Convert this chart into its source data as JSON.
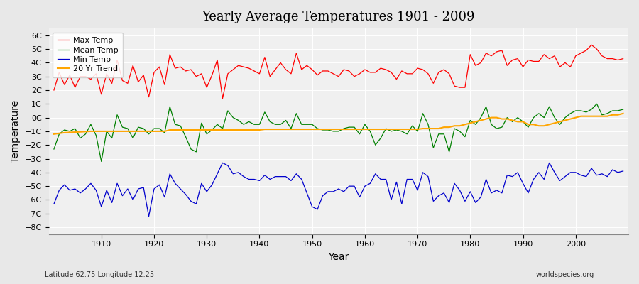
{
  "title": "Yearly Average Temperatures 1901 - 2009",
  "xlabel": "Year",
  "ylabel": "Temperature",
  "subtitle_left": "Latitude 62.75 Longitude 12.25",
  "subtitle_right": "worldspecies.org",
  "ylim": [
    -8.5,
    6.5
  ],
  "yticks": [
    -8,
    -7,
    -6,
    -5,
    -4,
    -3,
    -2,
    -1,
    0,
    1,
    2,
    3,
    4,
    5,
    6
  ],
  "ytick_labels": [
    "−8C",
    "−7C",
    "−6C",
    "−5C",
    "−4C",
    "−3C",
    "−2C",
    "−1C",
    "0C",
    "1C",
    "2C",
    "3C",
    "4C",
    "5C",
    "6C"
  ],
  "xticks": [
    1910,
    1920,
    1930,
    1940,
    1950,
    1960,
    1970,
    1980,
    1990,
    2000
  ],
  "max_color": "#ff0000",
  "mean_color": "#008000",
  "min_color": "#0000cc",
  "trend_color": "#ffa500",
  "bg_color": "#e8e8e8",
  "plot_bg": "#f0f0f0",
  "grid_color": "#ffffff",
  "legend_labels": [
    "Max Temp",
    "Mean Temp",
    "Min Temp",
    "20 Yr Trend"
  ],
  "start_year": 1901,
  "end_year": 2009,
  "max_temps": [
    2.0,
    3.3,
    2.4,
    3.1,
    2.2,
    3.0,
    3.0,
    2.8,
    3.2,
    1.7,
    3.2,
    2.5,
    4.2,
    2.7,
    2.5,
    3.8,
    2.6,
    3.1,
    1.5,
    3.3,
    3.7,
    2.4,
    4.6,
    3.6,
    3.7,
    3.4,
    3.5,
    3.0,
    3.2,
    2.2,
    3.1,
    4.2,
    1.4,
    3.2,
    3.5,
    3.8,
    3.7,
    3.6,
    3.4,
    3.2,
    4.4,
    3.0,
    3.5,
    4.0,
    3.5,
    3.2,
    4.7,
    3.5,
    3.8,
    3.5,
    3.1,
    3.4,
    3.4,
    3.2,
    3.0,
    3.5,
    3.4,
    3.0,
    3.2,
    3.5,
    3.3,
    3.3,
    3.6,
    3.5,
    3.3,
    2.8,
    3.4,
    3.2,
    3.2,
    3.6,
    3.5,
    3.2,
    2.5,
    3.3,
    3.5,
    3.2,
    2.3,
    2.2,
    2.2,
    4.6,
    3.8,
    4.0,
    4.7,
    4.5,
    4.8,
    4.9,
    3.8,
    4.2,
    4.3,
    3.7,
    4.2,
    4.1,
    4.1,
    4.6,
    4.3,
    4.5,
    3.7,
    4.0,
    3.7,
    4.5,
    4.7,
    4.9,
    5.3,
    5.0,
    4.5,
    4.3,
    4.3,
    4.2,
    4.3
  ],
  "mean_temps": [
    -2.3,
    -1.2,
    -0.9,
    -1.0,
    -0.8,
    -1.5,
    -1.2,
    -0.5,
    -1.3,
    -3.2,
    -1.0,
    -1.5,
    0.2,
    -0.7,
    -0.8,
    -1.5,
    -0.7,
    -0.8,
    -1.2,
    -0.8,
    -0.8,
    -1.1,
    0.8,
    -0.5,
    -0.6,
    -1.4,
    -2.3,
    -2.5,
    -0.4,
    -1.2,
    -0.9,
    -0.5,
    -0.8,
    0.5,
    0.0,
    -0.2,
    -0.5,
    -0.3,
    -0.5,
    -0.5,
    0.4,
    -0.3,
    -0.5,
    -0.5,
    -0.2,
    -0.8,
    0.3,
    -0.5,
    -0.5,
    -0.5,
    -0.8,
    -0.9,
    -0.9,
    -1.0,
    -1.0,
    -0.8,
    -0.7,
    -0.7,
    -1.2,
    -0.5,
    -1.0,
    -2.0,
    -1.5,
    -0.8,
    -1.0,
    -0.9,
    -1.0,
    -1.2,
    -0.6,
    -1.0,
    0.3,
    -0.5,
    -2.2,
    -1.2,
    -1.2,
    -2.5,
    -0.8,
    -1.0,
    -1.4,
    -0.2,
    -0.5,
    0.0,
    0.8,
    -0.5,
    -0.8,
    -0.7,
    0.0,
    -0.3,
    0.0,
    -0.3,
    -0.7,
    0.0,
    0.3,
    0.0,
    0.8,
    0.0,
    -0.5,
    0.0,
    0.3,
    0.5,
    0.5,
    0.4,
    0.6,
    1.0,
    0.2,
    0.3,
    0.5,
    0.5,
    0.6
  ],
  "min_temps": [
    -6.3,
    -5.3,
    -4.9,
    -5.3,
    -5.2,
    -5.5,
    -5.2,
    -4.8,
    -5.3,
    -6.5,
    -5.3,
    -6.2,
    -4.8,
    -5.7,
    -5.2,
    -6.0,
    -5.2,
    -5.1,
    -7.2,
    -5.2,
    -4.9,
    -5.8,
    -4.1,
    -4.8,
    -5.2,
    -5.6,
    -6.1,
    -6.3,
    -4.8,
    -5.4,
    -4.9,
    -4.1,
    -3.3,
    -3.5,
    -4.1,
    -4.0,
    -4.3,
    -4.5,
    -4.5,
    -4.6,
    -4.2,
    -4.5,
    -4.3,
    -4.3,
    -4.3,
    -4.6,
    -4.1,
    -4.5,
    -5.5,
    -6.5,
    -6.7,
    -5.7,
    -5.4,
    -5.4,
    -5.2,
    -5.4,
    -5.0,
    -5.0,
    -5.8,
    -5.0,
    -4.8,
    -4.1,
    -4.5,
    -4.5,
    -6.0,
    -4.7,
    -6.3,
    -4.5,
    -4.5,
    -5.3,
    -4.0,
    -4.3,
    -6.1,
    -5.7,
    -5.5,
    -6.2,
    -4.8,
    -5.3,
    -6.1,
    -5.4,
    -6.2,
    -5.8,
    -4.5,
    -5.5,
    -5.3,
    -5.5,
    -4.2,
    -4.3,
    -4.0,
    -4.8,
    -5.5,
    -4.5,
    -4.0,
    -4.5,
    -3.3,
    -4.0,
    -4.6,
    -4.3,
    -4.0,
    -4.0,
    -4.2,
    -4.3,
    -3.7,
    -4.2,
    -4.1,
    -4.3,
    -3.8,
    -4.0,
    -3.9
  ],
  "trend_temps": [
    -1.2,
    -1.15,
    -1.1,
    -1.08,
    -1.06,
    -1.04,
    -1.02,
    -1.0,
    -1.0,
    -1.0,
    -1.0,
    -1.0,
    -1.0,
    -1.0,
    -1.0,
    -1.0,
    -1.0,
    -1.0,
    -1.0,
    -1.0,
    -1.0,
    -1.0,
    -0.9,
    -0.9,
    -0.9,
    -0.9,
    -0.9,
    -0.9,
    -0.9,
    -0.9,
    -0.9,
    -0.9,
    -0.9,
    -0.9,
    -0.9,
    -0.9,
    -0.9,
    -0.9,
    -0.9,
    -0.9,
    -0.85,
    -0.85,
    -0.85,
    -0.85,
    -0.85,
    -0.85,
    -0.85,
    -0.85,
    -0.85,
    -0.85,
    -0.85,
    -0.85,
    -0.85,
    -0.85,
    -0.85,
    -0.85,
    -0.85,
    -0.85,
    -0.85,
    -0.85,
    -0.85,
    -0.85,
    -0.85,
    -0.85,
    -0.85,
    -0.85,
    -0.85,
    -0.85,
    -0.85,
    -0.85,
    -0.8,
    -0.8,
    -0.8,
    -0.8,
    -0.7,
    -0.7,
    -0.6,
    -0.6,
    -0.5,
    -0.4,
    -0.3,
    -0.2,
    -0.1,
    0.0,
    0.0,
    -0.1,
    -0.1,
    -0.2,
    -0.3,
    -0.3,
    -0.5,
    -0.5,
    -0.6,
    -0.6,
    -0.5,
    -0.4,
    -0.3,
    -0.2,
    -0.1,
    0.0,
    0.1,
    0.1,
    0.1,
    0.1,
    0.1,
    0.1,
    0.2,
    0.2,
    0.3
  ]
}
